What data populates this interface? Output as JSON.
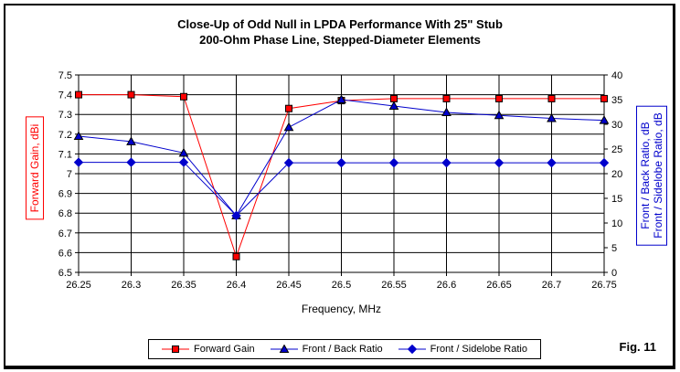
{
  "figure_label": "Fig. 11",
  "colors": {
    "grid": "#000000",
    "background": "#FFFFFF",
    "gain_red": "#FF0000",
    "ratio_blue": "#0000CC"
  },
  "chart_data": {
    "type": "line",
    "title_lines": [
      "Close-Up of Odd Null in LPDA Performance With 25\" Stub",
      "200-Ohm Phase Line, Stepped-Diameter Elements"
    ],
    "grid": true,
    "legend_position": "bottom",
    "x_axis": {
      "label": "Frequency, MHz",
      "ticks": [
        "26.25",
        "26.3",
        "26.35",
        "26.4",
        "26.45",
        "26.5",
        "26.55",
        "26.6",
        "26.65",
        "26.7",
        "26.75"
      ]
    },
    "left_axis": {
      "label": "Forward Gain, dBi",
      "ticks": [
        "7.5",
        "7.4",
        "7.3",
        "7.2",
        "7.1",
        "7",
        "6.9",
        "6.8",
        "6.7",
        "6.6",
        "6.5"
      ],
      "range": [
        6.5,
        7.5
      ],
      "color": "#FF0000"
    },
    "right_axis": {
      "labels": [
        "Front / Back Ratio, dB",
        "Front / Sidelobe Ratio, dB"
      ],
      "ticks": [
        "40",
        "35",
        "30",
        "25",
        "20",
        "15",
        "10",
        "5",
        "0"
      ],
      "range": [
        0,
        40
      ],
      "color": "#0000CC"
    },
    "x": [
      26.25,
      26.3,
      26.35,
      26.4,
      26.45,
      26.5,
      26.55,
      26.6,
      26.65,
      26.7,
      26.75
    ],
    "series": [
      {
        "name": "Forward Gain",
        "axis": "left",
        "marker": "square",
        "color": "#FF0000",
        "values": [
          7.4,
          7.4,
          7.39,
          6.58,
          7.33,
          7.37,
          7.38,
          7.38,
          7.38,
          7.38,
          7.38
        ]
      },
      {
        "name": "Front / Back Ratio",
        "axis": "right",
        "marker": "triangle",
        "color": "#0000CC",
        "values": [
          27.6,
          26.5,
          24.2,
          11.5,
          29.4,
          35.0,
          33.7,
          32.4,
          31.8,
          31.2,
          30.8
        ]
      },
      {
        "name": "Front / Sidelobe Ratio",
        "axis": "right",
        "marker": "diamond",
        "color": "#0000CC",
        "values": [
          22.3,
          22.3,
          22.3,
          11.5,
          22.2,
          22.2,
          22.2,
          22.2,
          22.2,
          22.2,
          22.2
        ]
      }
    ]
  }
}
